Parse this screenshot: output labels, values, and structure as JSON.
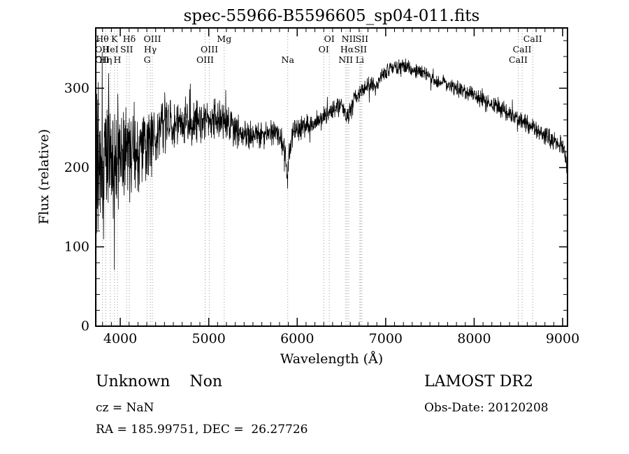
{
  "chart_data": {
    "type": "line",
    "title": "spec-55966-B5596605_sp04-011.fits",
    "xlabel": "Wavelength (Å)",
    "ylabel": "Flux (relative)",
    "xlim": [
      3723,
      9055
    ],
    "ylim": [
      0,
      376
    ],
    "x_ticks": [
      4000,
      5000,
      6000,
      7000,
      8000,
      9000
    ],
    "x_minor_step": 100,
    "y_ticks": [
      0,
      100,
      200,
      300
    ],
    "y_minor_step": 20,
    "line_color": "#000000",
    "grid_color": "#999999",
    "background": "#ffffff",
    "legend": "none",
    "spectral_lines": [
      {
        "label": "OII",
        "wavelength": 3727,
        "row": 2
      },
      {
        "label": "OII",
        "wavelength": 3729,
        "row": 3
      },
      {
        "label": "Hθ",
        "wavelength": 3798,
        "row": 1
      },
      {
        "label": "Hη",
        "wavelength": 3835,
        "row": 3
      },
      {
        "label": "HeI",
        "wavelength": 3889,
        "row": 2
      },
      {
        "label": "K",
        "wavelength": 3934,
        "row": 1
      },
      {
        "label": "H",
        "wavelength": 3968,
        "row": 3
      },
      {
        "label": "SII",
        "wavelength": 4072,
        "row": 2
      },
      {
        "label": "Hδ",
        "wavelength": 4102,
        "row": 1
      },
      {
        "label": "G",
        "wavelength": 4305,
        "row": 3
      },
      {
        "label": "Hγ",
        "wavelength": 4340,
        "row": 2
      },
      {
        "label": "OIII",
        "wavelength": 4363,
        "row": 1
      },
      {
        "label": "OIII",
        "wavelength": 4959,
        "row": 3
      },
      {
        "label": "OIII",
        "wavelength": 5007,
        "row": 2
      },
      {
        "label": "Mg",
        "wavelength": 5175,
        "row": 1
      },
      {
        "label": "Na",
        "wavelength": 5893,
        "row": 3
      },
      {
        "label": "OI",
        "wavelength": 6300,
        "row": 2
      },
      {
        "label": "OI",
        "wavelength": 6363,
        "row": 1
      },
      {
        "label": "NII",
        "wavelength": 6548,
        "row": 3
      },
      {
        "label": "Hα",
        "wavelength": 6563,
        "row": 2
      },
      {
        "label": "NII",
        "wavelength": 6583,
        "row": 1
      },
      {
        "label": "Li",
        "wavelength": 6708,
        "row": 3
      },
      {
        "label": "SII",
        "wavelength": 6716,
        "row": 2
      },
      {
        "label": "SII",
        "wavelength": 6731,
        "row": 1
      },
      {
        "label": "CaII",
        "wavelength": 8498,
        "row": 3
      },
      {
        "label": "CaII",
        "wavelength": 8542,
        "row": 2
      },
      {
        "label": "CaII",
        "wavelength": 8662,
        "row": 1
      }
    ],
    "spectrum": {
      "seed": 20120208,
      "step": 2.6,
      "anchors": [
        [
          3723,
          195
        ],
        [
          3760,
          205
        ],
        [
          3800,
          208
        ],
        [
          3850,
          210
        ],
        [
          3900,
          213
        ],
        [
          3950,
          216
        ],
        [
          4000,
          220
        ],
        [
          4050,
          222
        ],
        [
          4100,
          224
        ],
        [
          4150,
          222
        ],
        [
          4200,
          226
        ],
        [
          4250,
          228
        ],
        [
          4300,
          232
        ],
        [
          4350,
          236
        ],
        [
          4400,
          242
        ],
        [
          4450,
          248
        ],
        [
          4500,
          252
        ],
        [
          4600,
          256
        ],
        [
          4700,
          258
        ],
        [
          4800,
          256
        ],
        [
          4900,
          260
        ],
        [
          5000,
          262
        ],
        [
          5100,
          259
        ],
        [
          5150,
          262
        ],
        [
          5200,
          260
        ],
        [
          5250,
          252
        ],
        [
          5300,
          248
        ],
        [
          5350,
          242
        ],
        [
          5400,
          238
        ],
        [
          5450,
          240
        ],
        [
          5500,
          241
        ],
        [
          5550,
          243
        ],
        [
          5600,
          244
        ],
        [
          5650,
          245
        ],
        [
          5700,
          246
        ],
        [
          5750,
          244
        ],
        [
          5800,
          240
        ],
        [
          5840,
          230
        ],
        [
          5870,
          215
        ],
        [
          5890,
          182
        ],
        [
          5910,
          225
        ],
        [
          5950,
          240
        ],
        [
          6000,
          248
        ],
        [
          6050,
          250
        ],
        [
          6100,
          252
        ],
        [
          6150,
          255
        ],
        [
          6200,
          258
        ],
        [
          6250,
          260
        ],
        [
          6300,
          263
        ],
        [
          6350,
          267
        ],
        [
          6400,
          272
        ],
        [
          6450,
          276
        ],
        [
          6500,
          278
        ],
        [
          6530,
          272
        ],
        [
          6560,
          258
        ],
        [
          6590,
          272
        ],
        [
          6650,
          288
        ],
        [
          6700,
          294
        ],
        [
          6750,
          298
        ],
        [
          6800,
          303
        ],
        [
          6850,
          305
        ],
        [
          6880,
          300
        ],
        [
          6920,
          310
        ],
        [
          6960,
          316
        ],
        [
          7000,
          320
        ],
        [
          7050,
          324
        ],
        [
          7100,
          327
        ],
        [
          7150,
          328
        ],
        [
          7200,
          328
        ],
        [
          7250,
          326
        ],
        [
          7300,
          324
        ],
        [
          7350,
          322
        ],
        [
          7400,
          320
        ],
        [
          7450,
          318
        ],
        [
          7500,
          315
        ],
        [
          7550,
          312
        ],
        [
          7600,
          306
        ],
        [
          7650,
          308
        ],
        [
          7700,
          305
        ],
        [
          7750,
          302
        ],
        [
          7800,
          299
        ],
        [
          7850,
          297
        ],
        [
          7900,
          295
        ],
        [
          7950,
          293
        ],
        [
          8000,
          291
        ],
        [
          8050,
          288
        ],
        [
          8100,
          286
        ],
        [
          8150,
          283
        ],
        [
          8200,
          280
        ],
        [
          8250,
          277
        ],
        [
          8300,
          274
        ],
        [
          8350,
          271
        ],
        [
          8400,
          268
        ],
        [
          8450,
          265
        ],
        [
          8500,
          262
        ],
        [
          8550,
          258
        ],
        [
          8600,
          255
        ],
        [
          8650,
          252
        ],
        [
          8700,
          248
        ],
        [
          8750,
          244
        ],
        [
          8800,
          240
        ],
        [
          8850,
          236
        ],
        [
          8900,
          233
        ],
        [
          8950,
          229
        ],
        [
          9000,
          226
        ],
        [
          9030,
          218
        ],
        [
          9055,
          196
        ]
      ],
      "noise": [
        [
          3723,
          95
        ],
        [
          3780,
          88
        ],
        [
          3850,
          84
        ],
        [
          3950,
          80
        ],
        [
          4000,
          76
        ],
        [
          4060,
          72
        ],
        [
          4120,
          62
        ],
        [
          4200,
          52
        ],
        [
          4300,
          46
        ],
        [
          4400,
          40
        ],
        [
          4500,
          36
        ],
        [
          4650,
          32
        ],
        [
          4800,
          30
        ],
        [
          5000,
          27
        ],
        [
          5200,
          24
        ],
        [
          5400,
          20
        ],
        [
          5600,
          18
        ],
        [
          5800,
          17
        ],
        [
          6000,
          16
        ],
        [
          6200,
          14
        ],
        [
          6400,
          13
        ],
        [
          6600,
          12
        ],
        [
          6800,
          11
        ],
        [
          7000,
          10
        ],
        [
          7300,
          9
        ],
        [
          7600,
          9
        ],
        [
          8000,
          10
        ],
        [
          8400,
          11
        ],
        [
          8800,
          12
        ],
        [
          9055,
          12
        ]
      ]
    }
  },
  "annotations": {
    "class": "Unknown    Non",
    "cz": "cz = NaN",
    "ra_dec": "RA = 185.99751, DEC =  26.27726",
    "survey": "LAMOST DR2",
    "obs_date": "Obs-Date: 20120208"
  }
}
